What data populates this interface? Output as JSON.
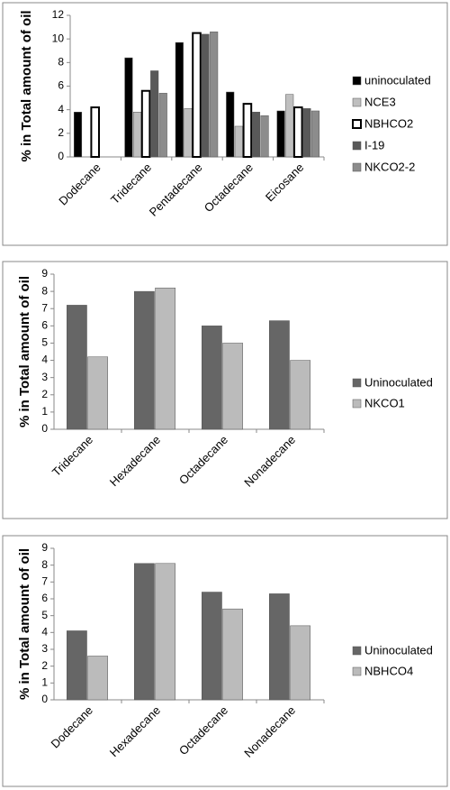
{
  "chart_data": [
    {
      "type": "bar",
      "y_label": "%  in Total amount of oil",
      "categories": [
        "Dodecane",
        "Tridecane",
        "Pentadecane",
        "Octadecane",
        "Eicosane"
      ],
      "series": [
        {
          "name": "uninoculated",
          "color": "#000000",
          "values": [
            3.8,
            8.4,
            9.7,
            5.5,
            3.9
          ]
        },
        {
          "name": "NCE3",
          "color": "#bfbfbf",
          "values": [
            null,
            3.8,
            4.1,
            2.6,
            5.3
          ]
        },
        {
          "name": "NBHCO2",
          "color": "#ffffff",
          "edgecolor": "#000000",
          "values": [
            4.2,
            5.6,
            10.5,
            4.5,
            4.2
          ]
        },
        {
          "name": "I-19",
          "color": "#595959",
          "values": [
            null,
            7.3,
            10.4,
            3.8,
            4.1
          ]
        },
        {
          "name": "NKCO2-2",
          "color": "#8c8c8c",
          "values": [
            null,
            5.4,
            10.6,
            3.5,
            3.9
          ]
        }
      ],
      "ylim": [
        0,
        12
      ],
      "yticks": [
        0,
        2,
        4,
        6,
        8,
        10,
        12
      ],
      "legend": "right"
    },
    {
      "type": "bar",
      "y_label": "%  in Total amount of oil",
      "categories": [
        "Tridecane",
        "Hexadecane",
        "Octadecane",
        "Nonadecane"
      ],
      "series": [
        {
          "name": "Uninoculated",
          "color": "#666666",
          "values": [
            7.2,
            8.0,
            6.0,
            6.3
          ]
        },
        {
          "name": "NKCO1",
          "color": "#bbbbbb",
          "values": [
            4.2,
            8.2,
            5.0,
            4.0
          ]
        }
      ],
      "ylim": [
        0,
        9
      ],
      "yticks": [
        0,
        1,
        2,
        3,
        4,
        5,
        6,
        7,
        8,
        9
      ],
      "legend": "right"
    },
    {
      "type": "bar",
      "y_label": "%  in Total amount of oil",
      "categories": [
        "Dodecane",
        "Hexadecane",
        "Octadecane",
        "Nonadecane"
      ],
      "series": [
        {
          "name": "Uninoculated",
          "color": "#666666",
          "values": [
            4.1,
            8.1,
            6.4,
            6.3
          ]
        },
        {
          "name": "NBHCO4",
          "color": "#bbbbbb",
          "values": [
            2.6,
            8.1,
            5.4,
            4.4
          ]
        }
      ],
      "ylim": [
        0,
        9
      ],
      "yticks": [
        0,
        1,
        2,
        3,
        4,
        5,
        6,
        7,
        8,
        9
      ],
      "legend": "right"
    }
  ]
}
